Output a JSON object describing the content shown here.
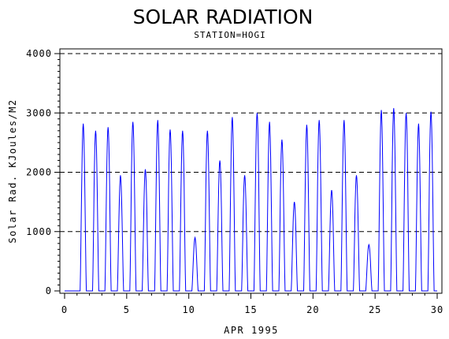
{
  "chart_data": {
    "type": "line",
    "title": "SOLAR RADIATION",
    "subtitle": "STATION=HOGI",
    "xlabel": "APR 1995",
    "ylabel": "Solar Rad. KJoules/M2",
    "xlim": [
      0,
      30
    ],
    "ylim": [
      0,
      4050
    ],
    "x_ticks": [
      "0",
      "5",
      "10",
      "15",
      "20",
      "25",
      "30"
    ],
    "y_ticks": [
      "0",
      "1000",
      "2000",
      "3000",
      "4000"
    ],
    "grid": "horizontal dashed at 1000, 2000, 3000, 4000",
    "line_color": "#0000ff",
    "series": [
      {
        "daily_peaks": [
          [
            1.5,
            2820
          ],
          [
            2.5,
            2700
          ],
          [
            3.5,
            2760
          ],
          [
            4.5,
            1950
          ],
          [
            5.5,
            2850
          ],
          [
            6.5,
            2050
          ],
          [
            7.5,
            2880
          ],
          [
            8.5,
            2720
          ],
          [
            9.5,
            2700
          ],
          [
            10.5,
            900
          ],
          [
            11.5,
            2700
          ],
          [
            12.5,
            2200
          ],
          [
            13.5,
            2930
          ],
          [
            14.5,
            1950
          ],
          [
            15.5,
            3000
          ],
          [
            16.5,
            2850
          ],
          [
            17.5,
            2550
          ],
          [
            18.5,
            1500
          ],
          [
            19.5,
            2800
          ],
          [
            20.5,
            2880
          ],
          [
            21.5,
            1700
          ],
          [
            22.5,
            2880
          ],
          [
            23.5,
            1950
          ],
          [
            24.5,
            780
          ],
          [
            25.5,
            3050
          ],
          [
            26.5,
            3080
          ],
          [
            27.5,
            3000
          ],
          [
            28.5,
            2820
          ],
          [
            29.5,
            3020
          ]
        ]
      }
    ]
  }
}
